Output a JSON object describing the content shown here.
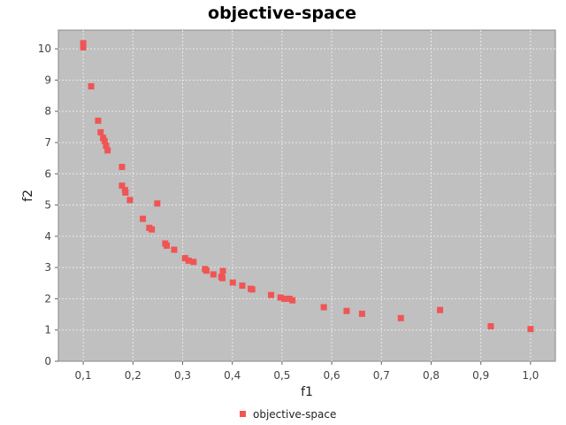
{
  "chart_data": {
    "type": "scatter",
    "title": "objective-space",
    "xlabel": "f1",
    "ylabel": "f2",
    "xlim": [
      0.05,
      1.05
    ],
    "ylim": [
      0,
      10.6
    ],
    "x_ticks": [
      "0,1",
      "0,2",
      "0,3",
      "0,4",
      "0,5",
      "0,6",
      "0,7",
      "0,8",
      "0,9",
      "1,0"
    ],
    "y_ticks": [
      "0",
      "1",
      "2",
      "3",
      "4",
      "5",
      "6",
      "7",
      "8",
      "9",
      "10"
    ],
    "grid": true,
    "legend_position": "bottom",
    "colors": {
      "plot_bg": "#c0c0c0",
      "marker": "#f05555",
      "grid": "#e8e8e8"
    },
    "series": [
      {
        "name": "objective-space",
        "points": [
          [
            0.1,
            10.18
          ],
          [
            0.1,
            10.05
          ],
          [
            0.116,
            8.8
          ],
          [
            0.13,
            7.7
          ],
          [
            0.135,
            7.33
          ],
          [
            0.14,
            7.15
          ],
          [
            0.143,
            7.05
          ],
          [
            0.146,
            6.9
          ],
          [
            0.149,
            6.75
          ],
          [
            0.178,
            6.22
          ],
          [
            0.178,
            5.62
          ],
          [
            0.184,
            5.48
          ],
          [
            0.185,
            5.4
          ],
          [
            0.194,
            5.16
          ],
          [
            0.249,
            5.05
          ],
          [
            0.22,
            4.56
          ],
          [
            0.233,
            4.27
          ],
          [
            0.238,
            4.22
          ],
          [
            0.265,
            3.77
          ],
          [
            0.268,
            3.7
          ],
          [
            0.283,
            3.57
          ],
          [
            0.305,
            3.3
          ],
          [
            0.312,
            3.22
          ],
          [
            0.322,
            3.18
          ],
          [
            0.345,
            2.95
          ],
          [
            0.348,
            2.9
          ],
          [
            0.362,
            2.78
          ],
          [
            0.378,
            2.7
          ],
          [
            0.38,
            2.66
          ],
          [
            0.381,
            2.89
          ],
          [
            0.401,
            2.52
          ],
          [
            0.42,
            2.42
          ],
          [
            0.437,
            2.32
          ],
          [
            0.44,
            2.3
          ],
          [
            0.478,
            2.12
          ],
          [
            0.497,
            2.04
          ],
          [
            0.505,
            2.0
          ],
          [
            0.515,
            2.0
          ],
          [
            0.521,
            1.95
          ],
          [
            0.584,
            1.73
          ],
          [
            0.63,
            1.61
          ],
          [
            0.661,
            1.52
          ],
          [
            0.739,
            1.38
          ],
          [
            0.818,
            1.64
          ],
          [
            0.92,
            1.12
          ],
          [
            1.0,
            1.03
          ]
        ]
      }
    ]
  }
}
